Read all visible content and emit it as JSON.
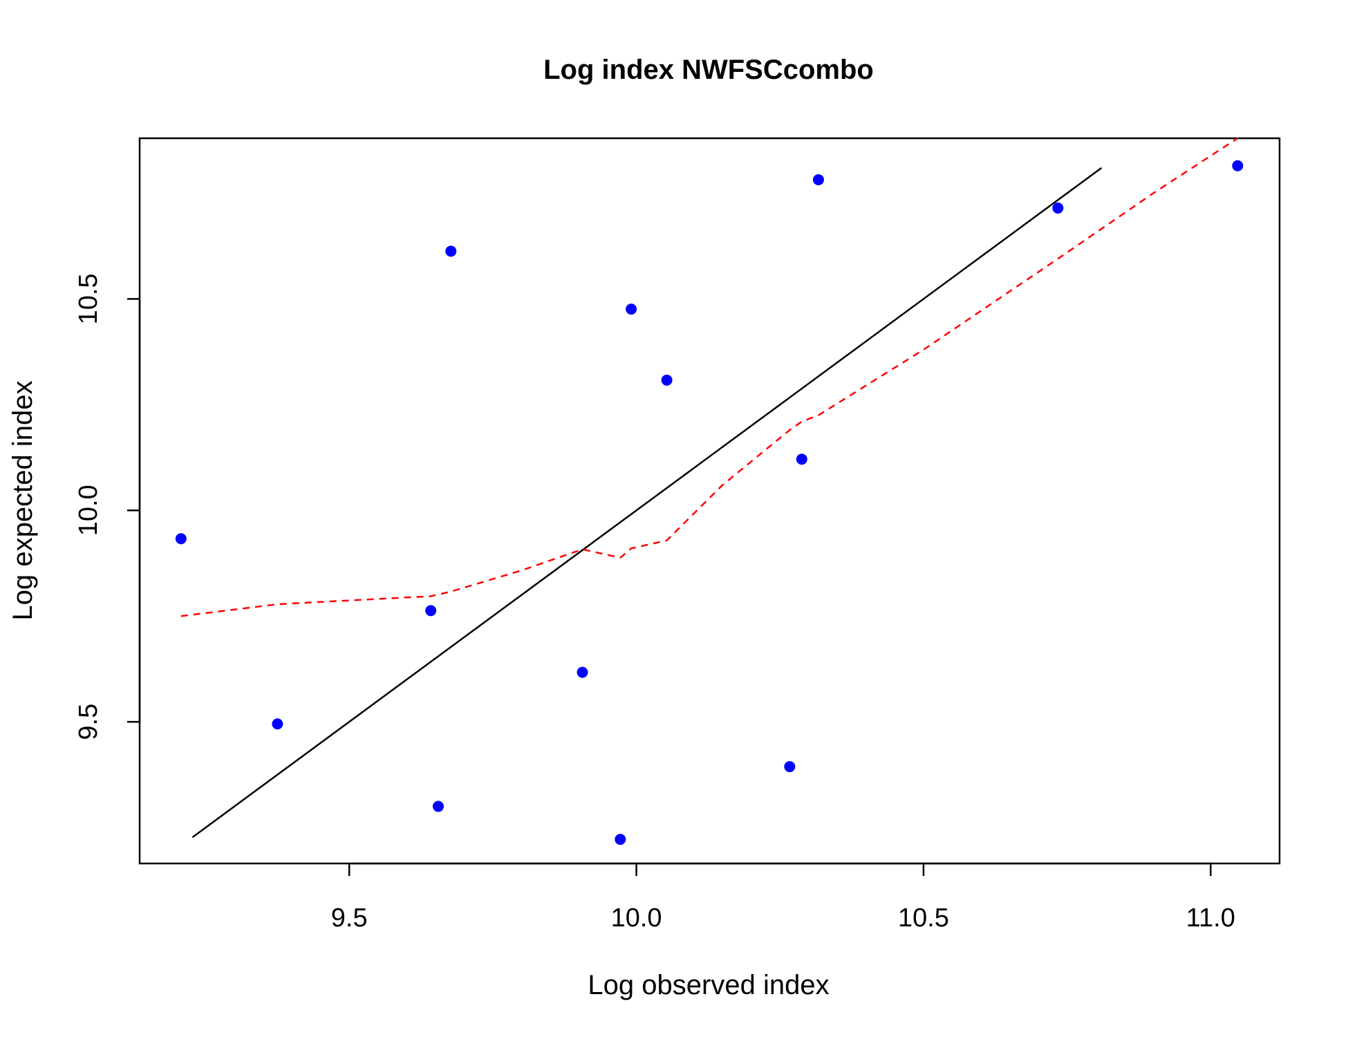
{
  "chart_data": {
    "type": "scatter",
    "title": "Log index NWFSCcombo",
    "xlabel": "Log observed index",
    "ylabel": "Log expected index",
    "xlim": [
      9.135,
      11.12
    ],
    "ylim": [
      9.165,
      10.88
    ],
    "x_ticks": [
      9.5,
      10.0,
      10.5,
      11.0
    ],
    "y_ticks": [
      9.5,
      10.0,
      10.5
    ],
    "x_tick_labels": [
      "9.5",
      "10.0",
      "10.5",
      "11.0"
    ],
    "y_tick_labels": [
      "9.5",
      "10.0",
      "10.5"
    ],
    "grid": false,
    "colors": {
      "points": "#0000ff",
      "identity_line": "#000000",
      "smoother": "#ff0000"
    },
    "points": [
      {
        "x": 9.207,
        "y": 9.933
      },
      {
        "x": 9.375,
        "y": 9.495
      },
      {
        "x": 9.642,
        "y": 9.763
      },
      {
        "x": 9.655,
        "y": 9.3
      },
      {
        "x": 9.677,
        "y": 10.613
      },
      {
        "x": 9.906,
        "y": 9.617
      },
      {
        "x": 9.972,
        "y": 9.222
      },
      {
        "x": 9.991,
        "y": 10.476
      },
      {
        "x": 10.053,
        "y": 10.308
      },
      {
        "x": 10.267,
        "y": 9.394
      },
      {
        "x": 10.288,
        "y": 10.121
      },
      {
        "x": 10.317,
        "y": 10.782
      },
      {
        "x": 10.734,
        "y": 10.715
      },
      {
        "x": 11.047,
        "y": 10.815
      }
    ],
    "identity_line": {
      "x": [
        9.227,
        10.81
      ],
      "y": [
        9.227,
        10.81
      ]
    },
    "smoother": {
      "x": [
        9.207,
        9.375,
        9.5,
        9.642,
        9.677,
        9.8,
        9.906,
        9.972,
        9.991,
        10.053,
        10.15,
        10.267,
        10.288,
        10.317,
        10.5,
        10.734,
        10.9,
        11.047
      ],
      "y": [
        9.75,
        9.778,
        9.787,
        9.797,
        9.808,
        9.858,
        9.908,
        9.888,
        9.91,
        9.929,
        10.06,
        10.19,
        10.21,
        10.225,
        10.38,
        10.595,
        10.75,
        10.88
      ]
    }
  }
}
